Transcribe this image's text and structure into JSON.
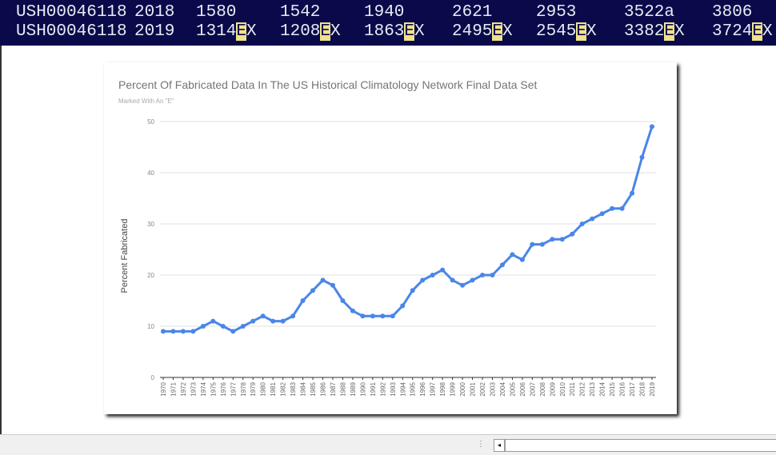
{
  "terminal": {
    "rows": [
      [
        [
          "USH00046118"
        ],
        [
          "2018"
        ],
        [
          "1580"
        ],
        [
          "1542"
        ],
        [
          "1940"
        ],
        [
          "2621"
        ],
        [
          "2953"
        ],
        [
          "3522a"
        ],
        [
          "3806"
        ]
      ],
      [
        [
          "USH00046118"
        ],
        [
          "2019"
        ],
        [
          "1314",
          "E",
          "X"
        ],
        [
          "1208",
          "E",
          "X"
        ],
        [
          "1863",
          "E",
          "X"
        ],
        [
          "2495",
          "E",
          "X"
        ],
        [
          "2545",
          "E",
          "X"
        ],
        [
          "3382",
          "E",
          "X"
        ],
        [
          "3724",
          "E",
          "X"
        ]
      ]
    ]
  },
  "chart_data": {
    "type": "line",
    "title": "Percent Of Fabricated Data In The US Historical Climatology Network Final Data Set",
    "subtitle": "Marked With An \"E\"",
    "y_label": "Percent Fabricated",
    "categories": [
      "1970",
      "1971",
      "1972",
      "1973",
      "1974",
      "1975",
      "1976",
      "1977",
      "1978",
      "1979",
      "1980",
      "1981",
      "1982",
      "1983",
      "1984",
      "1985",
      "1986",
      "1987",
      "1988",
      "1989",
      "1990",
      "1991",
      "1992",
      "1993",
      "1994",
      "1995",
      "1996",
      "1997",
      "1998",
      "1999",
      "2000",
      "2001",
      "2002",
      "2003",
      "2004",
      "2005",
      "2006",
      "2007",
      "2008",
      "2009",
      "2010",
      "2011",
      "2012",
      "2013",
      "2014",
      "2015",
      "2016",
      "2017",
      "2018",
      "2019"
    ],
    "values": [
      9,
      9,
      9,
      9,
      10,
      11,
      10,
      9,
      10,
      11,
      12,
      11,
      11,
      12,
      15,
      17,
      19,
      18,
      15,
      13,
      12,
      12,
      12,
      12,
      14,
      17,
      19,
      20,
      21,
      19,
      18,
      19,
      20,
      20,
      22,
      24,
      23,
      26,
      26,
      27,
      27,
      28,
      30,
      31,
      32,
      33,
      33,
      36,
      43,
      49
    ],
    "color": "#4a86e8",
    "ylim": [
      0,
      50
    ],
    "yticks": [
      0,
      10,
      20,
      30,
      40,
      50
    ],
    "grid": true
  }
}
